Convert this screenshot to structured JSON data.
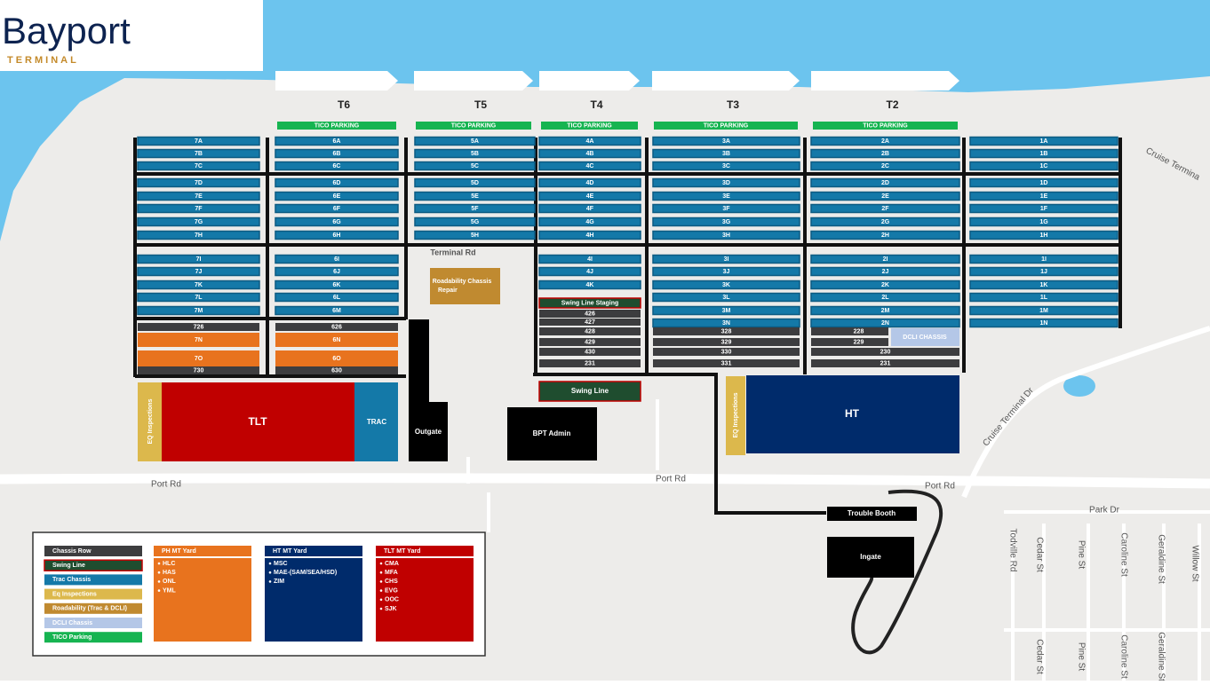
{
  "logo": {
    "name": "Bayport",
    "sub": "TERMINAL"
  },
  "terminals": [
    {
      "name": "T6",
      "parking": "TICO PARKING"
    },
    {
      "name": "T5",
      "parking": "TICO PARKING"
    },
    {
      "name": "T4",
      "parking": "TICO PARKING"
    },
    {
      "name": "T3",
      "parking": "TICO PARKING"
    },
    {
      "name": "T2",
      "parking": "TICO PARKING"
    }
  ],
  "columns": [
    {
      "rows": [
        "7A",
        "7B",
        "7C",
        "7D",
        "7E",
        "7F",
        "7G",
        "7H",
        "7I",
        "7J",
        "7K",
        "7L",
        "7M",
        "726",
        "7N",
        "7O",
        "730"
      ]
    },
    {
      "rows": [
        "6A",
        "6B",
        "6C",
        "6D",
        "6E",
        "6F",
        "6G",
        "6H",
        "6I",
        "6J",
        "6K",
        "6L",
        "6M",
        "626",
        "6N",
        "6O",
        "630"
      ]
    },
    {
      "rows": [
        "5A",
        "5B",
        "5C",
        "5D",
        "5E",
        "5F",
        "5G",
        "5H"
      ]
    },
    {
      "rows": [
        "4A",
        "4B",
        "4C",
        "4D",
        "4E",
        "4F",
        "4G",
        "4H",
        "4I",
        "4J",
        "4K",
        "Swing Line Staging",
        "426",
        "427",
        "428",
        "429",
        "430",
        "231"
      ]
    },
    {
      "rows": [
        "3A",
        "3B",
        "3C",
        "3D",
        "3E",
        "3F",
        "3G",
        "3H",
        "3I",
        "3J",
        "3K",
        "3L",
        "3M",
        "3N",
        "328",
        "329",
        "330",
        "331"
      ]
    },
    {
      "rows": [
        "2A",
        "2B",
        "2C",
        "2D",
        "2E",
        "2F",
        "2G",
        "2H",
        "2I",
        "2J",
        "2K",
        "2L",
        "2M",
        "2N",
        "228",
        "229",
        "230",
        "231"
      ]
    },
    {
      "rows": [
        "1A",
        "1B",
        "1C",
        "1D",
        "1E",
        "1F",
        "1G",
        "1H",
        "1I",
        "1J",
        "1K",
        "1L",
        "1M",
        "1N"
      ]
    }
  ],
  "labels": {
    "terminal_rd": "Terminal Rd",
    "roadability": [
      "Roadability  Chassis",
      "Repair"
    ],
    "swing_line": "Swing Line",
    "bpt_admin": "BPT Admin",
    "outgate": "Outgate",
    "tlt": "TLT",
    "trac": "TRAC",
    "eq_left": "EQ Inspections",
    "eq_right": "EQ Inspections",
    "ht": "HT",
    "dcli": "DCLI CHASSIS",
    "trouble_booth": "Trouble Booth",
    "ingate": "Ingate"
  },
  "streets": [
    "Port Rd",
    "Port Rd",
    "Port Rd",
    "Cruise Terminal Dr",
    "Cruise Termina",
    "Park Dr",
    "Todville Rd",
    "Cedar St",
    "Pine St",
    "Caroline St",
    "Geraldine St",
    "Willow St",
    "Cedar St",
    "Pine St",
    "Caroline St",
    "Geraldine St"
  ],
  "legend": {
    "items": [
      "Chassis Row",
      "Swing Line",
      "Trac Chassis",
      "Eq Inspections",
      "Roadability (Trac & DCLI)",
      "DCLI Chassis",
      "TICO Parking"
    ],
    "yards": [
      {
        "title": "PH MT Yard",
        "lines": [
          "HLC",
          "HAS",
          "ONL",
          "YML"
        ]
      },
      {
        "title": "HT MT Yard",
        "lines": [
          "MSC",
          "MAE-(SAM/SEA/HSD)",
          "ZIM"
        ]
      },
      {
        "title": "TLT MT Yard",
        "lines": [
          "CMA",
          "MFA",
          "CHS",
          "EVG",
          "OOC",
          "SJK"
        ]
      }
    ]
  }
}
